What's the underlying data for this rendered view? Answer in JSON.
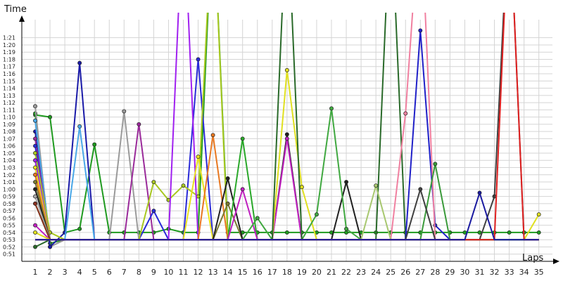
{
  "chart_data": {
    "type": "line",
    "ylabel": "Time",
    "xlabel": "Laps",
    "x": [
      1,
      2,
      3,
      4,
      5,
      6,
      7,
      8,
      9,
      10,
      11,
      12,
      13,
      14,
      15,
      16,
      17,
      18,
      19,
      20,
      21,
      22,
      23,
      24,
      25,
      26,
      27,
      28,
      29,
      30,
      31,
      32,
      33,
      34,
      35
    ],
    "x_tick_labels": [
      "1",
      "2",
      "3",
      "4",
      "5",
      "6",
      "7",
      "8",
      "9",
      "10",
      "11",
      "12",
      "13",
      "14",
      "15",
      "16",
      "17",
      "18",
      "19",
      "20",
      "21",
      "22",
      "23",
      "24",
      "25",
      "26",
      "27",
      "28",
      "29",
      "30",
      "31",
      "32",
      "33",
      "34",
      "35"
    ],
    "y_tick_values": [
      51,
      52,
      53,
      54,
      55,
      56,
      57,
      58,
      59,
      60,
      61,
      62,
      63,
      64,
      65,
      66,
      67,
      68,
      69,
      70,
      71,
      72,
      73,
      74,
      75,
      76,
      77,
      78,
      79,
      80,
      81
    ],
    "y_tick_labels": [
      "0:51",
      "0:52",
      "0:53",
      "0:54",
      "0:55",
      "0:56",
      "0:57",
      "0:58",
      "0:59",
      "1:00",
      "1:01",
      "1:02",
      "1:03",
      "1:04",
      "1:05",
      "1:06",
      "1:07",
      "1:08",
      "1:09",
      "1:10",
      "1:11",
      "1:12",
      "1:13",
      "1:14",
      "1:15",
      "1:16",
      "1:17",
      "1:18",
      "1:19",
      "1:20",
      "1:21"
    ],
    "y_unit": "seconds",
    "ylim": [
      50,
      83.5
    ],
    "grid": true,
    "legend": false,
    "series": [
      {
        "color": "#1f9a1f",
        "values": [
          70.3,
          70,
          54,
          54.5,
          66.2,
          54,
          54,
          54,
          54,
          54.5,
          54,
          54,
          100,
          54,
          54,
          54,
          54,
          54,
          54,
          54,
          54,
          54,
          54,
          54,
          54,
          54,
          54,
          54,
          54,
          54,
          54,
          54,
          54,
          54,
          54
        ]
      },
      {
        "color": "#2a9a2a",
        "values": [
          70.5,
          52.5,
          53,
          53,
          53,
          53,
          53,
          53,
          53,
          53,
          53,
          53,
          53,
          53,
          53,
          53,
          53,
          53,
          53,
          53,
          53,
          53,
          53,
          53,
          53,
          53,
          53,
          53,
          53,
          53,
          53,
          53,
          53,
          53,
          53
        ]
      },
      {
        "color": "#9a9a9a",
        "values": [
          71.5,
          52,
          53,
          53,
          53,
          53,
          70.8,
          53,
          53,
          53,
          53,
          53,
          53,
          53,
          53,
          53,
          53,
          53,
          53,
          53,
          53,
          53,
          53,
          53,
          53,
          53,
          53,
          53,
          53,
          53,
          53,
          53,
          53,
          53,
          53
        ]
      },
      {
        "color": "#1a1aa8",
        "values": [
          68,
          52,
          54,
          77.5,
          53,
          53,
          53,
          53,
          53,
          53,
          53,
          53,
          53,
          53,
          53,
          53,
          53,
          53,
          53,
          53,
          53,
          53,
          53,
          53,
          53,
          53,
          53,
          53,
          53,
          53,
          53,
          53,
          53,
          53,
          53
        ]
      },
      {
        "color": "#4aa8e8",
        "values": [
          69.5,
          53,
          53,
          68.7,
          53,
          53,
          53,
          53,
          53,
          53,
          53,
          53,
          53,
          53,
          53,
          53,
          53,
          53,
          53,
          53,
          53,
          53,
          53,
          53,
          53,
          53,
          53,
          53,
          53,
          53,
          53,
          53,
          53,
          53,
          53
        ]
      },
      {
        "color": "#9a2a9a",
        "values": [
          67,
          53,
          53,
          53,
          53,
          53,
          53,
          69,
          53,
          53,
          53,
          53,
          53,
          53,
          53,
          53,
          53,
          53,
          53,
          53,
          53,
          53,
          53,
          53,
          53,
          53,
          53,
          53,
          53,
          53,
          53,
          53,
          53,
          53,
          53
        ]
      },
      {
        "color": "#2a2ad8",
        "values": [
          66,
          53,
          53,
          53,
          53,
          53,
          53,
          53,
          57,
          53,
          53,
          78,
          53,
          53,
          53,
          53,
          53,
          53,
          53,
          53,
          53,
          53,
          53,
          53,
          53,
          53,
          53,
          53,
          53,
          53,
          53,
          53,
          53,
          53,
          53
        ]
      },
      {
        "color": "#a8c820",
        "values": [
          65,
          54,
          53,
          53,
          53,
          53,
          53,
          53,
          61,
          58.5,
          60.5,
          59,
          100,
          53,
          53,
          53,
          53,
          53,
          53,
          53,
          53,
          53,
          53,
          53,
          53,
          53,
          53,
          53,
          53,
          53,
          53,
          53,
          53,
          53,
          53
        ]
      },
      {
        "color": "#a020f0",
        "values": [
          64,
          53,
          53,
          53,
          53,
          53,
          53,
          53,
          53,
          53,
          100,
          53,
          53,
          53,
          53,
          53,
          53,
          53,
          53,
          53,
          53,
          53,
          53,
          53,
          53,
          53,
          53,
          53,
          53,
          53,
          53,
          53,
          53,
          53,
          53
        ]
      },
      {
        "color": "#e8e020",
        "values": [
          63,
          53,
          53,
          53,
          53,
          53,
          53,
          53,
          53,
          53,
          53,
          64.5,
          53,
          53,
          53,
          53,
          53,
          53,
          53,
          53,
          53,
          53,
          53,
          53,
          53,
          53,
          53,
          53,
          53,
          53,
          53,
          53,
          53,
          53,
          53
        ]
      },
      {
        "color": "#e87820",
        "values": [
          62,
          53,
          53,
          53,
          53,
          53,
          53,
          53,
          53,
          53,
          53,
          53,
          67.5,
          53,
          53,
          53,
          53,
          53,
          53,
          53,
          53,
          53,
          53,
          53,
          53,
          53,
          53,
          53,
          53,
          53,
          53,
          53,
          53,
          53,
          53
        ]
      },
      {
        "color": "#7a7a30",
        "values": [
          61,
          53,
          53,
          53,
          53,
          53,
          53,
          53,
          53,
          53,
          53,
          53,
          53,
          58,
          53,
          53,
          53,
          53,
          53,
          53,
          53,
          53,
          53,
          53,
          53,
          53,
          53,
          53,
          53,
          53,
          53,
          53,
          53,
          53,
          53
        ]
      },
      {
        "color": "#202020",
        "values": [
          60,
          53,
          53,
          53,
          53,
          53,
          53,
          53,
          53,
          53,
          53,
          53,
          53,
          61.5,
          53,
          53,
          53,
          67.6,
          53,
          53,
          53,
          61,
          53,
          53,
          53,
          53,
          53,
          53,
          53,
          53,
          53,
          53,
          53,
          53,
          53
        ]
      },
      {
        "color": "#a8a8a8",
        "values": [
          59,
          53,
          53,
          53,
          53,
          53,
          53,
          53,
          53,
          53,
          53,
          53,
          53,
          53,
          53,
          53,
          53,
          53,
          53,
          53,
          53,
          53,
          53,
          53,
          53,
          53,
          53,
          53,
          53,
          53,
          53,
          53,
          53,
          53,
          53
        ]
      },
      {
        "color": "#2aa82a",
        "values": [
          58,
          53,
          53,
          53,
          53,
          53,
          53,
          53,
          53,
          53,
          53,
          53,
          53,
          53,
          67,
          53,
          53,
          53,
          53,
          53,
          53,
          53,
          53,
          53,
          53,
          53,
          53,
          53,
          53,
          53,
          53,
          53,
          53,
          53,
          53
        ]
      },
      {
        "color": "#c020c0",
        "values": [
          55,
          53,
          53,
          53,
          53,
          53,
          53,
          53,
          53,
          53,
          53,
          53,
          53,
          53,
          60,
          53,
          53,
          67,
          53,
          53,
          53,
          53,
          53,
          53,
          53,
          53,
          53,
          53,
          53,
          53,
          53,
          53,
          53,
          53,
          53
        ]
      },
      {
        "color": "#8a3020",
        "values": [
          58,
          53,
          53,
          53,
          53,
          53,
          53,
          53,
          53,
          53,
          53,
          53,
          53,
          53,
          53,
          53,
          53,
          53,
          53,
          53,
          53,
          53,
          53,
          53,
          53,
          53,
          53,
          53,
          53,
          53,
          53,
          53,
          53,
          53,
          53
        ]
      },
      {
        "color": "#e0e020",
        "values": [
          54,
          53,
          53,
          53,
          53,
          53,
          53,
          53,
          53,
          53,
          53,
          53,
          53,
          53,
          53,
          53,
          53,
          76.5,
          60.3,
          53,
          53,
          53,
          53,
          53,
          53,
          53,
          53,
          53,
          53,
          53,
          53,
          53,
          53,
          53,
          56.5
        ]
      },
      {
        "color": "#40a840",
        "values": [
          53,
          53,
          53,
          53,
          53,
          53,
          53,
          53,
          53,
          53,
          53,
          53,
          53,
          53,
          53,
          56,
          53,
          53,
          53,
          56.5,
          71.2,
          54.5,
          53,
          53,
          53,
          53,
          53,
          53,
          53,
          53,
          53,
          53,
          53,
          53,
          53
        ]
      },
      {
        "color": "#2a6a2a",
        "values": [
          52,
          53,
          53,
          53,
          53,
          53,
          53,
          53,
          53,
          53,
          53,
          53,
          53,
          53,
          53,
          53,
          53,
          100,
          53,
          53,
          53,
          53,
          53,
          53,
          100,
          53,
          53,
          53,
          53,
          53,
          53,
          53,
          53,
          53,
          53
        ]
      },
      {
        "color": "#2020c8",
        "values": [
          53,
          53,
          53,
          53,
          53,
          53,
          53,
          53,
          53,
          53,
          53,
          53,
          53,
          53,
          53,
          53,
          53,
          53,
          53,
          53,
          53,
          53,
          53,
          53,
          53,
          53,
          82,
          55,
          53,
          53,
          53,
          53,
          53,
          53,
          53
        ]
      },
      {
        "color": "#f080a0",
        "values": [
          53,
          53,
          53,
          53,
          53,
          53,
          53,
          53,
          53,
          53,
          53,
          53,
          53,
          53,
          53,
          53,
          53,
          53,
          53,
          53,
          53,
          53,
          53,
          53,
          53,
          70.5,
          100,
          53,
          53,
          53,
          53,
          53,
          53,
          53,
          53
        ]
      },
      {
        "color": "#a8c870",
        "values": [
          53,
          53,
          53,
          53,
          53,
          53,
          53,
          53,
          53,
          53,
          53,
          53,
          53,
          53,
          53,
          53,
          53,
          53,
          53,
          53,
          53,
          53,
          53,
          60.5,
          53,
          53,
          53,
          53,
          53,
          53,
          53,
          53,
          53,
          53,
          53
        ]
      },
      {
        "color": "#3a9a3a",
        "values": [
          53,
          53,
          53,
          53,
          53,
          53,
          53,
          53,
          53,
          53,
          53,
          53,
          53,
          53,
          53,
          53,
          53,
          53,
          53,
          53,
          53,
          53,
          53,
          53,
          53,
          53,
          53,
          63.5,
          53,
          53,
          53,
          53,
          53,
          53,
          53
        ]
      },
      {
        "color": "#404040",
        "values": [
          53,
          53,
          53,
          53,
          53,
          53,
          53,
          53,
          53,
          53,
          53,
          53,
          53,
          53,
          53,
          53,
          53,
          53,
          53,
          53,
          53,
          53,
          53,
          53,
          53,
          53,
          60,
          53,
          53,
          53,
          53,
          59,
          100,
          53,
          53
        ]
      },
      {
        "color": "#e02020",
        "values": [
          53,
          53,
          53,
          53,
          53,
          53,
          53,
          53,
          53,
          53,
          53,
          53,
          53,
          53,
          53,
          53,
          53,
          53,
          53,
          53,
          53,
          53,
          53,
          53,
          53,
          53,
          53,
          53,
          53,
          53,
          53,
          53,
          100,
          53,
          53
        ]
      },
      {
        "color": "#1a1aa0",
        "values": [
          53,
          53,
          53,
          53,
          53,
          53,
          53,
          53,
          53,
          53,
          53,
          53,
          53,
          53,
          53,
          53,
          53,
          53,
          53,
          53,
          53,
          53,
          53,
          53,
          53,
          53,
          53,
          53,
          53,
          53,
          59.5,
          53,
          53,
          53,
          53
        ]
      }
    ]
  }
}
